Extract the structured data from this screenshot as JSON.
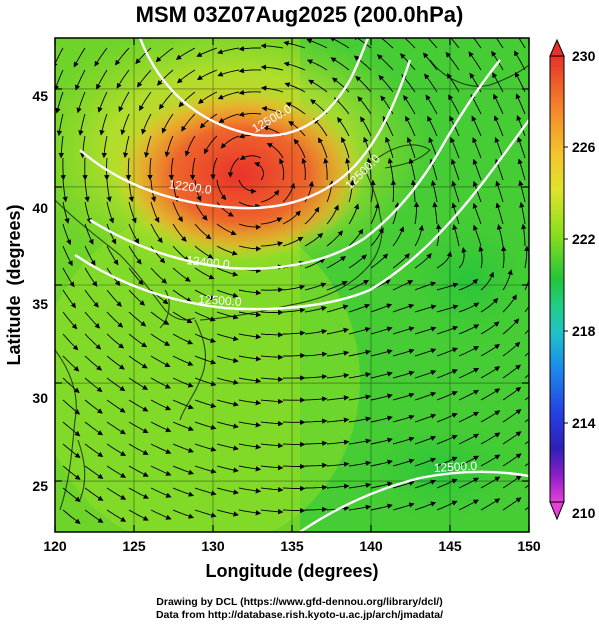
{
  "title": "MSM 03Z07Aug2025 (200.0hPa)",
  "xaxis": {
    "label": "Longitude (degrees)",
    "range": [
      120,
      150
    ],
    "ticks": [
      "120",
      "125",
      "130",
      "135",
      "140",
      "145",
      "150"
    ]
  },
  "yaxis": {
    "label": "Latitude  (degrees)",
    "range": [
      22.4,
      47.6
    ],
    "ticks": [
      "25",
      "30",
      "35",
      "40",
      "45"
    ]
  },
  "colorbar": {
    "min": 210,
    "max": 230,
    "tick_labels": [
      "230",
      "226",
      "222",
      "218",
      "214",
      "210"
    ]
  },
  "contour_labels": [
    "12200.0",
    "12400.0",
    "12500.0",
    "12500.0",
    "12500.0",
    "12500.0"
  ],
  "credits": {
    "line1": "Drawing by DCL (https://www.gfd-dennou.org/library/dcl/)",
    "line2": "Data from http://database.rish.kyoto-u.ac.jp/arch/jmadata/"
  },
  "colors": {
    "background": "#ffffff",
    "contour": "#ffffff",
    "streamline": "#000000",
    "scale_warm": "#e8312a",
    "scale_mid": "#8ade1e",
    "scale_cool": "#1f8f3a"
  }
}
